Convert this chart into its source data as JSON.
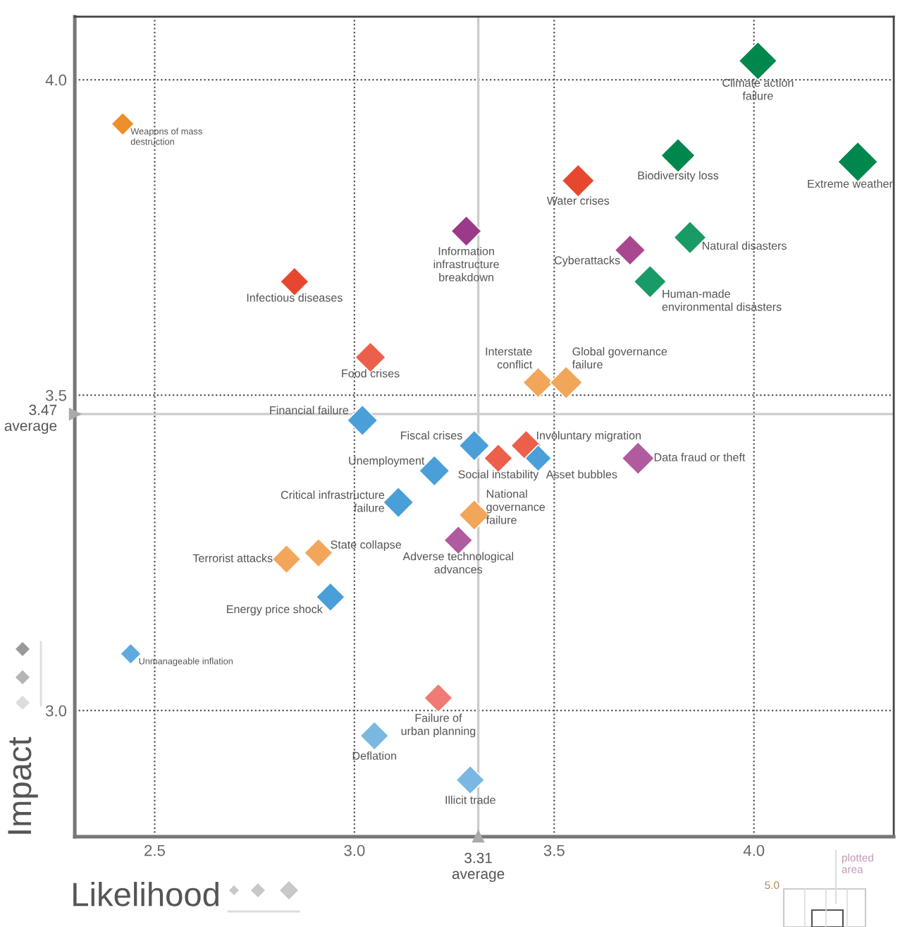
{
  "chart_data": {
    "type": "bubble",
    "xlabel": "Likelihood",
    "ylabel": "Impact",
    "marker": "diamond",
    "grid": true,
    "xlim": [
      2.3,
      4.35
    ],
    "ylim": [
      2.8,
      4.1
    ],
    "xticks": [
      2.5,
      {
        "value": 3,
        "label": "3.0"
      },
      3.5,
      {
        "value": 4,
        "label": "4.0"
      }
    ],
    "yticks": [
      {
        "value": 3,
        "label": "3.0"
      },
      3.5,
      {
        "value": 4,
        "label": "4.0"
      }
    ],
    "x": [
      4.01,
      3.81,
      4.26,
      3.56,
      3.28,
      3.69,
      3.84,
      3.74,
      2.85,
      2.42,
      3.04,
      3.46,
      3.53,
      3.02,
      3.3,
      3.43,
      3.36,
      3.46,
      3.71,
      3.2,
      3.11,
      3.3,
      3.26,
      2.91,
      2.83,
      2.94,
      2.44,
      3.21,
      3.05,
      3.29
    ],
    "values": [
      4.03,
      3.88,
      3.87,
      3.84,
      3.76,
      3.73,
      3.75,
      3.68,
      3.68,
      3.93,
      3.56,
      3.52,
      3.52,
      3.46,
      3.42,
      3.42,
      3.4,
      3.4,
      3.4,
      3.38,
      3.33,
      3.31,
      3.27,
      3.25,
      3.24,
      3.18,
      3.09,
      3.02,
      2.96,
      2.89
    ],
    "sizes": [
      0.91,
      0.73,
      1,
      0.66,
      0.58,
      0.58,
      0.66,
      0.66,
      0.51,
      0.33,
      0.58,
      0.58,
      0.66,
      0.58,
      0.58,
      0.58,
      0.51,
      0.44,
      0.66,
      0.58,
      0.58,
      0.58,
      0.51,
      0.51,
      0.51,
      0.51,
      0.27,
      0.51,
      0.51,
      0.51
    ],
    "colors": [
      "#00874e",
      "#00874e",
      "#00874e",
      "#e8472f",
      "#9b3a8a",
      "#a9478f",
      "#1a9a64",
      "#1a9a64",
      "#e8472f",
      "#ef8f2a",
      "#ec5f4b",
      "#f2a65a",
      "#f2a65a",
      "#4a9fd8",
      "#4a9fd8",
      "#ec5f4b",
      "#ec5f4b",
      "#4a9fd8",
      "#b05aa0",
      "#4a9fd8",
      "#4a9fd8",
      "#f2a65a",
      "#b05aa0",
      "#f2a65a",
      "#f2a65a",
      "#4a9fd8",
      "#5eaae0",
      "#ef7b74",
      "#7ab8e2",
      "#7ab8e2"
    ],
    "ref_lines": [
      {
        "axis": "x",
        "value": 3.31,
        "label": "3.31\naverage",
        "color": "#cccccc"
      },
      {
        "axis": "y",
        "value": 3.47,
        "label": "3.47\naverage",
        "color": "#cccccc"
      }
    ],
    "annotations": [
      {
        "text": "Climate action\nfailure",
        "x": 4.01,
        "y": 4.03
      },
      {
        "text": "Biodiversity loss",
        "x": 3.81,
        "y": 3.88
      },
      {
        "text": "Extreme weather",
        "x": 4.26,
        "y": 3.87
      },
      {
        "text": "Water crises",
        "x": 3.56,
        "y": 3.84
      },
      {
        "text": "Information\ninfrastructure\nbreakdown",
        "x": 3.28,
        "y": 3.76
      },
      {
        "text": "Cyberattacks",
        "x": 3.69,
        "y": 3.73
      },
      {
        "text": "Natural disasters",
        "x": 3.84,
        "y": 3.75
      },
      {
        "text": "Human-made\nenvironmental disasters",
        "x": 3.74,
        "y": 3.68
      },
      {
        "text": "Infectious diseases",
        "x": 2.85,
        "y": 3.68
      },
      {
        "text": "Weapons of mass\ndestruction",
        "x": 2.42,
        "y": 3.93
      },
      {
        "text": "Food crises",
        "x": 3.04,
        "y": 3.56
      },
      {
        "text": "Interstate\nconflict",
        "x": 3.46,
        "y": 3.52
      },
      {
        "text": "Global governance\nfailure",
        "x": 3.53,
        "y": 3.52
      },
      {
        "text": "Financial failure",
        "x": 3.02,
        "y": 3.46
      },
      {
        "text": "Fiscal crises",
        "x": 3.3,
        "y": 3.42
      },
      {
        "text": "Involuntary migration",
        "x": 3.43,
        "y": 3.42
      },
      {
        "text": "Social instability",
        "x": 3.36,
        "y": 3.4
      },
      {
        "text": "Asset bubbles",
        "x": 3.46,
        "y": 3.4
      },
      {
        "text": "Data fraud or theft",
        "x": 3.71,
        "y": 3.4
      },
      {
        "text": "Unemployment",
        "x": 3.2,
        "y": 3.38
      },
      {
        "text": "Critical infrastructure\nfailure",
        "x": 3.11,
        "y": 3.33
      },
      {
        "text": "National\ngovernance\nfailure",
        "x": 3.3,
        "y": 3.31
      },
      {
        "text": "Adverse technological\nadvances",
        "x": 3.26,
        "y": 3.27
      },
      {
        "text": "State collapse",
        "x": 2.91,
        "y": 3.25
      },
      {
        "text": "Terrorist attacks",
        "x": 2.83,
        "y": 3.24
      },
      {
        "text": "Energy price shock",
        "x": 2.94,
        "y": 3.18
      },
      {
        "text": "Unmanageable inflation",
        "x": 2.44,
        "y": 3.09
      },
      {
        "text": "Failure of\nurban planning",
        "x": 3.21,
        "y": 3.02
      },
      {
        "text": "Deflation",
        "x": 3.05,
        "y": 2.96
      },
      {
        "text": "Illicit trade",
        "x": 3.29,
        "y": 2.89
      },
      "plotted\narea",
      "5.0"
    ]
  }
}
